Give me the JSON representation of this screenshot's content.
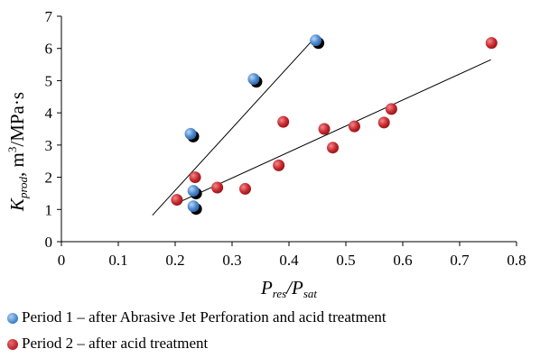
{
  "chart_data": {
    "type": "scatter",
    "xlim": [
      0,
      0.8
    ],
    "ylim": [
      0,
      7
    ],
    "xticks": [
      "0",
      "0.1",
      "0.2",
      "0.3",
      "0.4",
      "0.5",
      "0.6",
      "0.7",
      "0.8"
    ],
    "yticks": [
      "0",
      "1",
      "2",
      "3",
      "4",
      "5",
      "6",
      "7"
    ],
    "xlabel": {
      "main": "P",
      "sub1": "res",
      "slash": "/P",
      "sub2": "sat"
    },
    "ylabel": {
      "main": "K",
      "sub": "prod",
      "rest": ", m",
      "sup": "3",
      "tail": "/MPa·s"
    },
    "grid": false,
    "series": [
      {
        "name": "Period 1 – after Abrasive Jet Perforation and acid treatment",
        "color": "#5b9bd5",
        "points": [
          [
            0.227,
            3.35
          ],
          [
            0.232,
            1.58
          ],
          [
            0.232,
            1.1
          ],
          [
            0.338,
            5.05
          ],
          [
            0.447,
            6.25
          ]
        ],
        "trendline": [
          [
            0.16,
            0.82
          ],
          [
            0.45,
            6.42
          ]
        ]
      },
      {
        "name": "Period 2 – after  acid treatment",
        "color": "#c8282d",
        "points": [
          [
            0.203,
            1.3
          ],
          [
            0.235,
            2.0
          ],
          [
            0.274,
            1.68
          ],
          [
            0.323,
            1.64
          ],
          [
            0.382,
            2.37
          ],
          [
            0.39,
            3.72
          ],
          [
            0.462,
            3.5
          ],
          [
            0.477,
            2.92
          ],
          [
            0.515,
            3.58
          ],
          [
            0.567,
            3.7
          ],
          [
            0.58,
            4.12
          ],
          [
            0.756,
            6.17
          ]
        ],
        "trendline": [
          [
            0.21,
            1.25
          ],
          [
            0.755,
            5.65
          ]
        ]
      }
    ]
  }
}
